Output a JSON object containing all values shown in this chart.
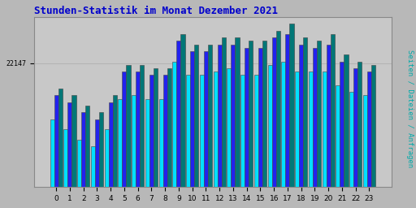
{
  "title": "Stunden-Statistik im Monat Dezember 2021",
  "title_color": "#0000cc",
  "title_fontsize": 9,
  "ylabel": "Seiten / Dateien / Anfragen",
  "ylabel_color": "#00aaaa",
  "ylabel_fontsize": 6.5,
  "xlabel_labels": [
    "0",
    "1",
    "2",
    "3",
    "4",
    "5",
    "6",
    "7",
    "8",
    "9",
    "10",
    "11",
    "12",
    "13",
    "14",
    "15",
    "16",
    "17",
    "18",
    "19",
    "20",
    "21",
    "22",
    "23"
  ],
  "ytick_label": "22147",
  "ytick_value": 22147,
  "background_color": "#b8b8b8",
  "plot_background": "#c8c8c8",
  "bar_color_cyan": "#00e0ff",
  "bar_color_blue": "#2222ee",
  "bar_color_teal": "#007777",
  "bar_edge_color": "#444444",
  "seiten": [
    20500,
    20200,
    19900,
    19700,
    20200,
    21100,
    21200,
    21100,
    21100,
    22200,
    21800,
    21800,
    21900,
    22000,
    21800,
    21800,
    22100,
    22200,
    21900,
    21900,
    21900,
    21500,
    21300,
    21200
  ],
  "dateien": [
    21200,
    21000,
    20700,
    20500,
    21000,
    21900,
    21900,
    21800,
    21800,
    22800,
    22500,
    22500,
    22700,
    22700,
    22600,
    22600,
    22900,
    23000,
    22700,
    22600,
    22700,
    22200,
    22000,
    21900
  ],
  "anfragen": [
    21400,
    21200,
    20900,
    20700,
    21200,
    22100,
    22100,
    22000,
    22000,
    23000,
    22700,
    22700,
    22900,
    22900,
    22800,
    22800,
    23100,
    23300,
    22900,
    22800,
    23000,
    22400,
    22200,
    22100
  ],
  "ymin": 18500,
  "ymax": 23500,
  "ytick_pos": 22147,
  "grid_color": "#aaaaaa",
  "spine_color": "#888888"
}
